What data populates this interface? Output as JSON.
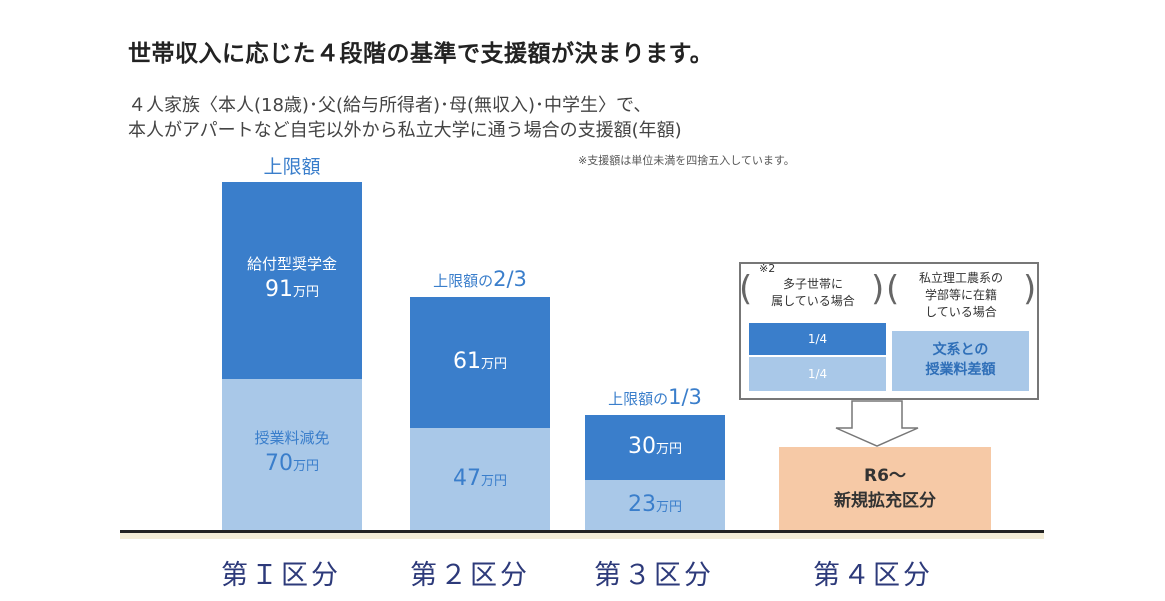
{
  "title": "世帯収入に応じた４段階の基準で支援額が決まります。",
  "subtitle_line1": "４人家族〈本人(18歳)･父(給与所得者)･母(無収入)･中学生〉で、",
  "subtitle_line2": "本人がアパートなど自宅以外から私立大学に通う場合の支援額(年額)",
  "note": "※支援額は単位未満を四捨五入しています。",
  "colors": {
    "scholarship": "#3a7ecb",
    "tuition": "#a9c8e8",
    "new_category": "#f6c9a6",
    "category_text": "#2d3a7a"
  },
  "chart_data": {
    "type": "bar",
    "stacked": true,
    "categories": [
      "第Ｉ区分",
      "第２区分",
      "第３区分",
      "第４区分"
    ],
    "unit": "万円",
    "series": [
      {
        "name": "給付型奨学金",
        "values": [
          91,
          61,
          30,
          null
        ]
      },
      {
        "name": "授業料減免",
        "values": [
          70,
          47,
          23,
          null
        ]
      }
    ],
    "top_labels": [
      "上限額",
      "上限額の2/3",
      "上限額の1/3",
      ""
    ],
    "top_label_parts": [
      {
        "prefix": "上限額",
        "frac": ""
      },
      {
        "prefix": "上限額の",
        "frac": "2/3"
      },
      {
        "prefix": "上限額の",
        "frac": "1/3"
      }
    ],
    "data_labels": {
      "scholarship_name": "給付型奨学金",
      "tuition_name": "授業料減免",
      "unit": "万円"
    },
    "category4": {
      "box_left_note": "※2",
      "box_left_text1": "多子世帯に",
      "box_left_text2": "属している場合",
      "box_left_fraction_top": "1/4",
      "box_left_fraction_bottom": "1/4",
      "box_right_text1": "私立理工農系の",
      "box_right_text2": "学部等に在籍",
      "box_right_text3": "している場合",
      "box_right_value1": "文系との",
      "box_right_value2": "授業料差額",
      "new_label1": "R6～",
      "new_label2": "新規拡充区分"
    }
  }
}
